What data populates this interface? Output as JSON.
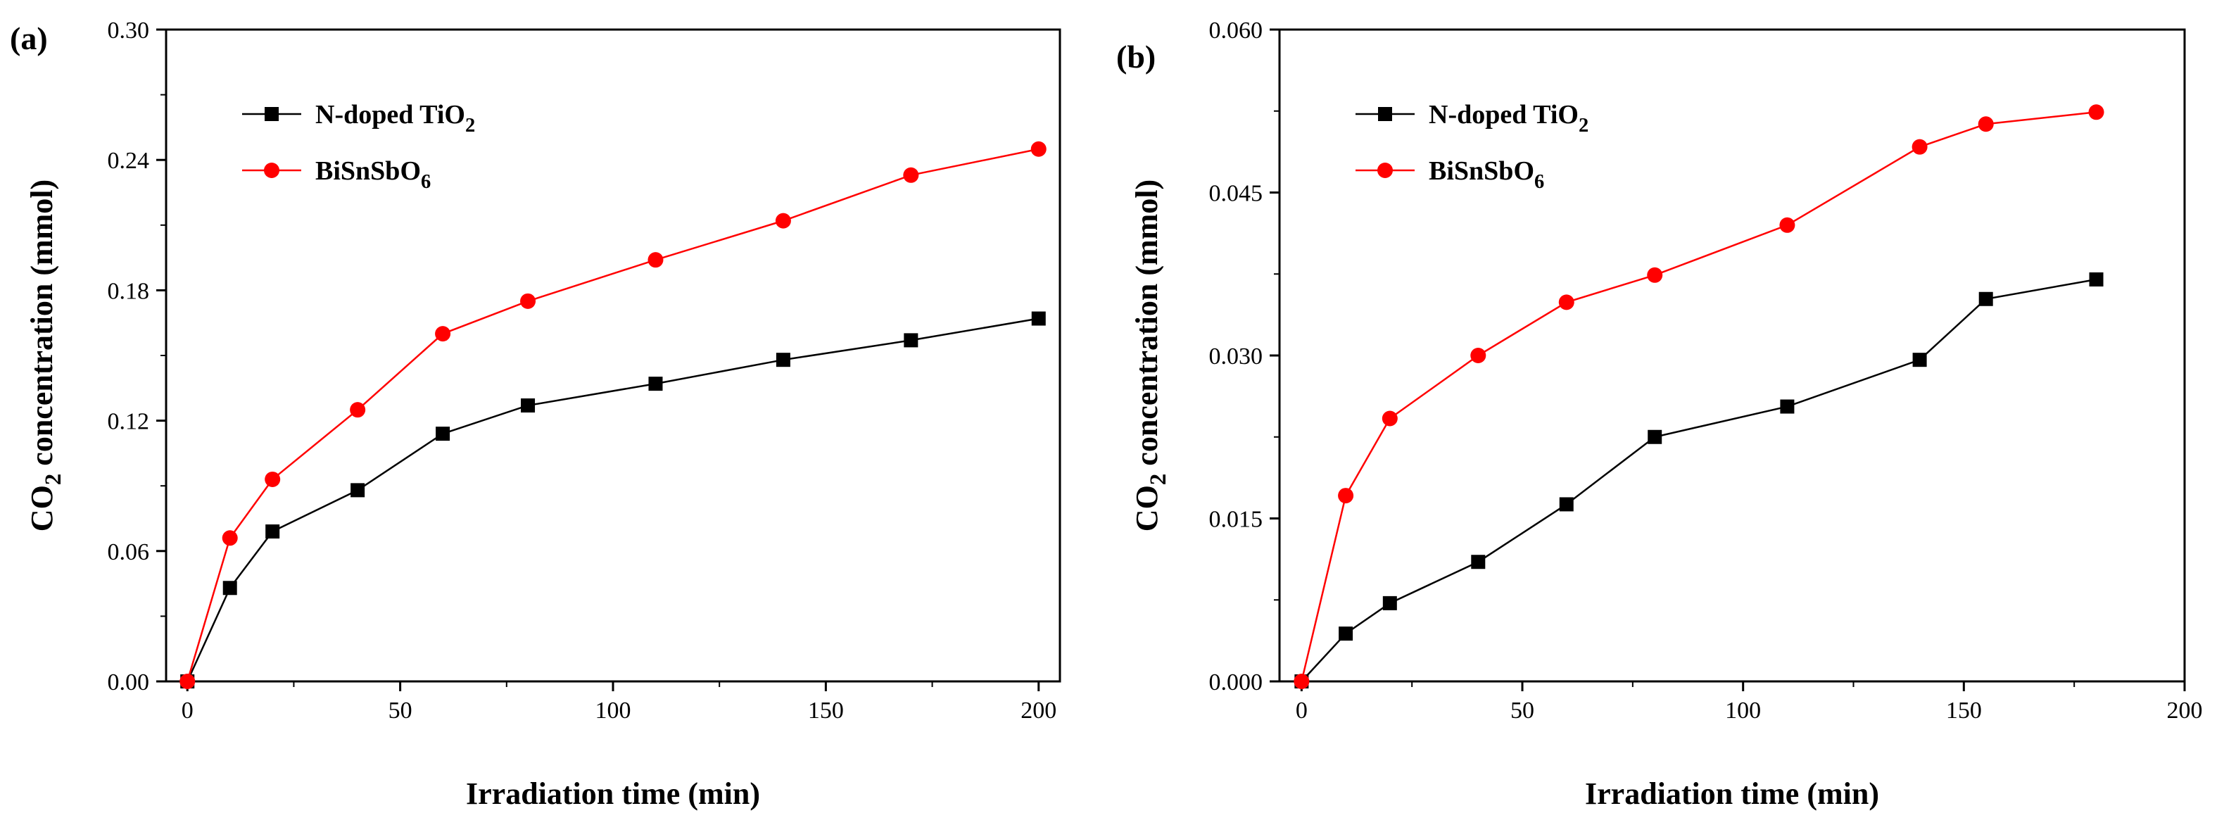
{
  "chart_data": [
    {
      "panel_label": "(a)",
      "type": "line",
      "xlabel": "Irradiation time (min)",
      "ylabel": {
        "main": "CO",
        "sub": "2",
        "rest": " concentration (mmol)"
      },
      "xlim": [
        -5,
        205
      ],
      "ylim": [
        0,
        0.3
      ],
      "xticks": [
        "0",
        "50",
        "100",
        "150",
        "200"
      ],
      "xtick_values": [
        0,
        50,
        100,
        150,
        200
      ],
      "yticks": [
        "0.00",
        "0.06",
        "0.12",
        "0.18",
        "0.24",
        "0.30"
      ],
      "ytick_values": [
        0,
        0.06,
        0.12,
        0.18,
        0.24,
        0.3
      ],
      "legend_position": "top-left",
      "grid": false,
      "series": [
        {
          "name": {
            "main": "N-doped TiO",
            "sub": "2"
          },
          "marker": "square",
          "color": "#000000",
          "x": [
            0,
            10,
            20,
            40,
            60,
            80,
            110,
            140,
            170,
            200
          ],
          "y": [
            0.0,
            0.043,
            0.069,
            0.088,
            0.114,
            0.127,
            0.137,
            0.148,
            0.157,
            0.167
          ]
        },
        {
          "name": {
            "main": "BiSnSbO",
            "sub": "6"
          },
          "marker": "circle",
          "color": "#ff0000",
          "x": [
            0,
            10,
            20,
            40,
            60,
            80,
            110,
            140,
            170,
            200
          ],
          "y": [
            0.0,
            0.066,
            0.093,
            0.125,
            0.16,
            0.175,
            0.194,
            0.212,
            0.233,
            0.245
          ]
        }
      ]
    },
    {
      "panel_label": "(b)",
      "type": "line",
      "xlabel": "Irradiation time (min)",
      "ylabel": {
        "main": "CO",
        "sub": "2",
        "rest": " concentration (mmol)"
      },
      "xlim": [
        -5,
        200
      ],
      "ylim": [
        0,
        0.06
      ],
      "xticks": [
        "0",
        "50",
        "100",
        "150",
        "200"
      ],
      "xtick_values": [
        0,
        50,
        100,
        150,
        200
      ],
      "yticks": [
        "0.000",
        "0.015",
        "0.030",
        "0.045",
        "0.060"
      ],
      "ytick_values": [
        0,
        0.015,
        0.03,
        0.045,
        0.06
      ],
      "legend_position": "top-left",
      "grid": false,
      "series": [
        {
          "name": {
            "main": "N-doped TiO",
            "sub": "2"
          },
          "marker": "square",
          "color": "#000000",
          "x": [
            0,
            10,
            20,
            40,
            60,
            80,
            110,
            140,
            155,
            180
          ],
          "y": [
            0.0,
            0.0044,
            0.0072,
            0.011,
            0.0163,
            0.0225,
            0.0253,
            0.0296,
            0.0352,
            0.037
          ]
        },
        {
          "name": {
            "main": "BiSnSbO",
            "sub": "6"
          },
          "marker": "circle",
          "color": "#ff0000",
          "x": [
            0,
            10,
            20,
            40,
            60,
            80,
            110,
            140,
            155,
            180
          ],
          "y": [
            0.0,
            0.0171,
            0.0242,
            0.03,
            0.0349,
            0.0374,
            0.042,
            0.0492,
            0.0513,
            0.0524
          ]
        }
      ]
    }
  ]
}
